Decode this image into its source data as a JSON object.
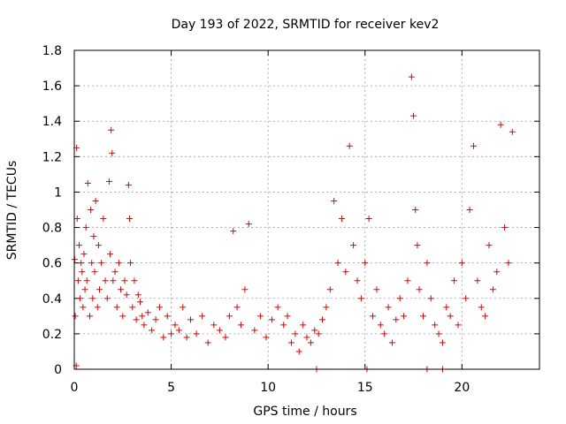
{
  "chart_data": {
    "type": "scatter",
    "title": "Day 193 of 2022, SRMTID for receiver kev2",
    "xlabel": "GPS time / hours",
    "ylabel": "SRMTID / TECUs",
    "xlim": [
      0,
      24
    ],
    "ylim": [
      0,
      1.8
    ],
    "xticks": [
      0,
      5,
      10,
      15,
      20
    ],
    "yticks": [
      0,
      0.2,
      0.4,
      0.6,
      0.8,
      1,
      1.2,
      1.4,
      1.6,
      1.8
    ],
    "xtick_labels": [
      "0",
      "5",
      "10",
      "15",
      "20"
    ],
    "ytick_labels": [
      "0",
      "0.2",
      "0.4",
      "0.6",
      "0.8",
      "1",
      "1.2",
      "1.4",
      "1.6",
      "1.8"
    ],
    "grid": true,
    "marker": "+",
    "color": "#e00000",
    "series": [
      {
        "name": "kev2",
        "x": [
          0.02,
          0.05,
          0.1,
          0.12,
          0.15,
          0.2,
          0.25,
          0.3,
          0.35,
          0.4,
          0.45,
          0.5,
          0.55,
          0.6,
          0.65,
          0.7,
          0.8,
          0.85,
          0.9,
          0.95,
          1.0,
          1.05,
          1.1,
          1.2,
          1.25,
          1.3,
          1.4,
          1.5,
          1.6,
          1.7,
          1.8,
          1.85,
          1.9,
          1.95,
          2.0,
          2.1,
          2.2,
          2.3,
          2.4,
          2.5,
          2.6,
          2.7,
          2.8,
          2.85,
          2.9,
          3.0,
          3.1,
          3.2,
          3.3,
          3.4,
          3.5,
          3.6,
          3.8,
          4.0,
          4.2,
          4.4,
          4.6,
          4.8,
          5.0,
          5.2,
          5.4,
          5.6,
          5.8,
          6.0,
          6.3,
          6.6,
          6.9,
          7.2,
          7.5,
          7.8,
          8.0,
          8.2,
          8.4,
          8.6,
          8.8,
          9.0,
          9.3,
          9.6,
          9.9,
          10.2,
          10.5,
          10.8,
          11.0,
          11.2,
          11.4,
          11.6,
          11.8,
          12.0,
          12.2,
          12.4,
          12.6,
          12.8,
          13.0,
          13.2,
          13.4,
          13.6,
          13.8,
          14.0,
          14.2,
          14.4,
          14.6,
          14.8,
          15.0,
          15.2,
          15.4,
          15.6,
          15.8,
          16.0,
          16.2,
          16.4,
          16.6,
          16.8,
          17.0,
          17.2,
          17.4,
          17.5,
          17.6,
          17.7,
          17.8,
          18.0,
          18.2,
          18.4,
          18.6,
          18.8,
          19.0,
          19.2,
          19.4,
          19.6,
          19.8,
          20.0,
          20.2,
          20.4,
          20.6,
          20.8,
          21.0,
          21.2,
          21.4,
          21.6,
          21.8,
          22.0,
          22.2,
          22.4,
          22.6,
          12.5,
          15.1,
          18.2,
          19.0
        ],
        "y": [
          0.62,
          0.3,
          0.02,
          1.25,
          0.85,
          0.5,
          0.7,
          0.4,
          0.6,
          0.55,
          0.35,
          0.65,
          0.45,
          0.8,
          0.5,
          1.05,
          0.3,
          0.9,
          0.6,
          0.4,
          0.75,
          0.55,
          0.95,
          0.35,
          0.7,
          0.45,
          0.6,
          0.85,
          0.5,
          0.4,
          1.06,
          0.65,
          1.35,
          1.22,
          0.5,
          0.55,
          0.35,
          0.6,
          0.45,
          0.3,
          0.5,
          0.42,
          1.04,
          0.85,
          0.6,
          0.35,
          0.5,
          0.28,
          0.42,
          0.38,
          0.3,
          0.25,
          0.32,
          0.22,
          0.28,
          0.35,
          0.18,
          0.3,
          0.2,
          0.25,
          0.22,
          0.35,
          0.18,
          0.28,
          0.2,
          0.3,
          0.15,
          0.25,
          0.22,
          0.18,
          0.3,
          0.78,
          0.35,
          0.25,
          0.45,
          0.82,
          0.22,
          0.3,
          0.18,
          0.28,
          0.35,
          0.25,
          0.3,
          0.15,
          0.2,
          0.1,
          0.25,
          0.18,
          0.15,
          0.22,
          0.2,
          0.28,
          0.35,
          0.45,
          0.95,
          0.6,
          0.85,
          0.55,
          1.26,
          0.7,
          0.5,
          0.4,
          0.6,
          0.85,
          0.3,
          0.45,
          0.25,
          0.2,
          0.35,
          0.15,
          0.28,
          0.4,
          0.3,
          0.5,
          1.65,
          1.43,
          0.9,
          0.7,
          0.45,
          0.3,
          0.6,
          0.4,
          0.25,
          0.2,
          0.15,
          0.35,
          0.3,
          0.5,
          0.25,
          0.6,
          0.4,
          0.9,
          1.26,
          0.5,
          0.35,
          0.3,
          0.7,
          0.45,
          0.55,
          1.38,
          0.8,
          0.6,
          1.34,
          0.0,
          0.0,
          0.0,
          0.0
        ]
      }
    ]
  }
}
